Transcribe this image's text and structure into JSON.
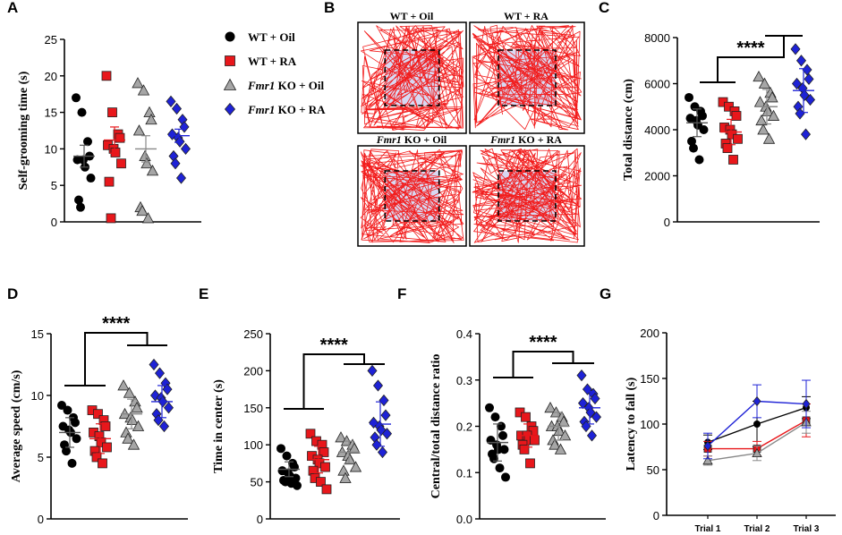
{
  "colors": {
    "wt_oil": "#000000",
    "wt_ra": "#e8171b",
    "ko_oil": "#a6a6a6",
    "ko_ra": "#1e22d6",
    "track": "#f21c1c",
    "center_fill": "#d8d8f2"
  },
  "legend": {
    "items": [
      {
        "key": "wt_oil",
        "italic": "",
        "text": "WT + Oil",
        "marker": "circle"
      },
      {
        "key": "wt_ra",
        "italic": "",
        "text": "WT + RA",
        "marker": "square"
      },
      {
        "key": "ko_oil",
        "italic": "Fmr1",
        "text": " KO + Oil",
        "marker": "triangle"
      },
      {
        "key": "ko_ra",
        "italic": "Fmr1",
        "text": " KO + RA",
        "marker": "diamond"
      }
    ]
  },
  "panel_b": {
    "label": "B",
    "tracks": [
      {
        "italic": "",
        "text": "WT + Oil"
      },
      {
        "italic": "",
        "text": "WT + RA"
      },
      {
        "italic": "Fmr1",
        "text": " KO + Oil"
      },
      {
        "italic": "Fmr1",
        "text": " KO + RA"
      }
    ]
  },
  "chart_data": [
    {
      "id": "A",
      "type": "scatter",
      "title": "",
      "ylabel": "Self-grooming time (s)",
      "ylim": [
        0,
        25
      ],
      "yticks": [
        "0",
        "5",
        "10",
        "15",
        "20",
        "25"
      ],
      "significance": "",
      "groups": [
        {
          "key": "wt_oil",
          "values": [
            17,
            15,
            11,
            9,
            8.5,
            8.5,
            7.5,
            6,
            3,
            2
          ],
          "mean": 9,
          "sem": 1.5
        },
        {
          "key": "wt_ra",
          "values": [
            20,
            15,
            12,
            11.5,
            10.5,
            10,
            9.5,
            8,
            5.5,
            0.5
          ],
          "mean": 11.2,
          "sem": 1.8
        },
        {
          "key": "ko_oil",
          "values": [
            19,
            18,
            15,
            14,
            12.5,
            9,
            8,
            7,
            2,
            1.5,
            0.5
          ],
          "mean": 10,
          "sem": 1.8
        },
        {
          "key": "ko_ra",
          "values": [
            16.5,
            15.5,
            14,
            13,
            12,
            11.5,
            11,
            10,
            9,
            8,
            6
          ],
          "mean": 11.8,
          "sem": 0.9
        }
      ]
    },
    {
      "id": "C",
      "type": "scatter",
      "title": "",
      "ylabel": "Total distance (cm)",
      "ylim": [
        0,
        8000
      ],
      "yticks": [
        "0",
        "2000",
        "4000",
        "6000",
        "8000"
      ],
      "significance": "****",
      "groups": [
        {
          "key": "wt_oil",
          "values": [
            5400,
            5000,
            4800,
            4600,
            4500,
            4400,
            4200,
            4000,
            3500,
            3200,
            2700
          ],
          "mean": 4300,
          "sem": 600
        },
        {
          "key": "wt_ra",
          "values": [
            5200,
            5000,
            4800,
            4600,
            4100,
            4000,
            3800,
            3600,
            3400,
            3200,
            2700
          ],
          "mean": 3900,
          "sem": 550
        },
        {
          "key": "ko_oil",
          "values": [
            6300,
            6000,
            5600,
            5400,
            5200,
            5000,
            4800,
            4600,
            4400,
            4000,
            3600
          ],
          "mean": 5000,
          "sem": 750
        },
        {
          "key": "ko_ra",
          "values": [
            7500,
            7000,
            6600,
            6200,
            6000,
            5800,
            5500,
            5300,
            5000,
            4700,
            3800
          ],
          "mean": 5700,
          "sem": 950
        }
      ]
    },
    {
      "id": "D",
      "type": "scatter",
      "title": "",
      "ylabel": "Average speed (cm/s)",
      "ylim": [
        0,
        15
      ],
      "yticks": [
        "0",
        "5",
        "10",
        "15"
      ],
      "significance": "****",
      "groups": [
        {
          "key": "wt_oil",
          "values": [
            9.2,
            8.8,
            8.2,
            7.8,
            7.5,
            7.2,
            7,
            6.5,
            6,
            5.5,
            4.5
          ],
          "mean": 7,
          "sem": 1.2
        },
        {
          "key": "wt_ra",
          "values": [
            8.8,
            8.5,
            8,
            7.5,
            7,
            6.7,
            6.2,
            5.8,
            5.5,
            5,
            4.5
          ],
          "mean": 6.5,
          "sem": 1.2
        },
        {
          "key": "ko_oil",
          "values": [
            10.8,
            10.2,
            9.5,
            9,
            8.5,
            8.2,
            8,
            7.5,
            7,
            6.5,
            6
          ],
          "mean": 8.5,
          "sem": 1.2
        },
        {
          "key": "ko_ra",
          "values": [
            12.5,
            11.8,
            11,
            10.5,
            10,
            9.8,
            9.5,
            9,
            8.5,
            8,
            7.5
          ],
          "mean": 9.5,
          "sem": 1.3
        }
      ]
    },
    {
      "id": "E",
      "type": "scatter",
      "title": "",
      "ylabel": "Time in center (s)",
      "ylim": [
        0,
        250
      ],
      "yticks": [
        "0",
        "50",
        "100",
        "150",
        "200",
        "250"
      ],
      "significance": "****",
      "groups": [
        {
          "key": "wt_oil",
          "values": [
            95,
            85,
            75,
            70,
            65,
            62,
            58,
            55,
            52,
            50,
            48,
            45
          ],
          "mean": 67,
          "sem": 10
        },
        {
          "key": "wt_ra",
          "values": [
            115,
            105,
            100,
            90,
            85,
            80,
            75,
            70,
            65,
            55,
            50,
            40
          ],
          "mean": 80,
          "sem": 18
        },
        {
          "key": "ko_oil",
          "values": [
            110,
            105,
            100,
            95,
            90,
            85,
            80,
            70,
            65,
            55
          ],
          "mean": 90,
          "sem": 15
        },
        {
          "key": "ko_ra",
          "values": [
            200,
            180,
            160,
            140,
            130,
            125,
            120,
            115,
            110,
            100,
            90
          ],
          "mean": 128,
          "sem": 30
        }
      ]
    },
    {
      "id": "F",
      "type": "scatter",
      "title": "",
      "ylabel": "Central/total distance ratio",
      "ylim": [
        0,
        0.4
      ],
      "yticks": [
        "0.0",
        "0.1",
        "0.2",
        "0.3",
        "0.4"
      ],
      "significance": "****",
      "groups": [
        {
          "key": "wt_oil",
          "values": [
            0.24,
            0.22,
            0.2,
            0.18,
            0.17,
            0.16,
            0.15,
            0.15,
            0.14,
            0.13,
            0.11,
            0.09
          ],
          "mean": 0.165,
          "sem": 0.04
        },
        {
          "key": "wt_ra",
          "values": [
            0.23,
            0.22,
            0.2,
            0.19,
            0.18,
            0.18,
            0.17,
            0.17,
            0.16,
            0.15,
            0.12
          ],
          "mean": 0.18,
          "sem": 0.025
        },
        {
          "key": "ko_oil",
          "values": [
            0.24,
            0.23,
            0.22,
            0.21,
            0.2,
            0.2,
            0.19,
            0.18,
            0.17,
            0.16,
            0.15
          ],
          "mean": 0.2,
          "sem": 0.03
        },
        {
          "key": "ko_ra",
          "values": [
            0.31,
            0.28,
            0.27,
            0.26,
            0.25,
            0.24,
            0.23,
            0.22,
            0.21,
            0.2,
            0.18
          ],
          "mean": 0.24,
          "sem": 0.035
        }
      ]
    },
    {
      "id": "G",
      "type": "line",
      "title": "",
      "ylabel": "Latency to fall (s)",
      "ylim": [
        0,
        200
      ],
      "yticks": [
        "0",
        "50",
        "100",
        "150",
        "200"
      ],
      "categories": [
        "Trial 1",
        "Trial 2",
        "Trial 3"
      ],
      "significance": "",
      "series": [
        {
          "key": "wt_oil",
          "values": [
            80,
            100,
            118
          ],
          "err": [
            8,
            25,
            12
          ]
        },
        {
          "key": "wt_ra",
          "values": [
            73,
            73,
            104
          ],
          "err": [
            8,
            8,
            18
          ]
        },
        {
          "key": "ko_oil",
          "values": [
            60,
            68,
            102
          ],
          "err": [
            5,
            8,
            12
          ]
        },
        {
          "key": "ko_ra",
          "values": [
            76,
            125,
            122
          ],
          "err": [
            14,
            18,
            26
          ]
        }
      ]
    }
  ]
}
